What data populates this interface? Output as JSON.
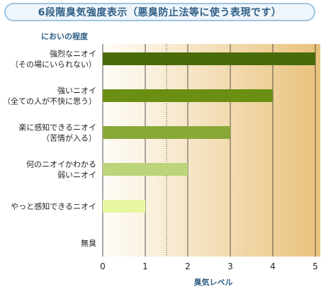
{
  "header": {
    "title": "6段階臭気強度表示（悪臭防止法等に使う表現です）"
  },
  "chart_data": {
    "type": "bar",
    "orientation": "horizontal",
    "title": "6段階臭気強度表示（悪臭防止法等に使う表現です）",
    "ylabel": "においの程度",
    "xlabel": "臭気レベル",
    "xlim": [
      0,
      5
    ],
    "xticks": [
      "0",
      "1",
      "2",
      "3",
      "4",
      "5"
    ],
    "grid": true,
    "categories": [
      [
        "強烈なニオイ",
        "（その場にいられない）"
      ],
      [
        "強いニオイ",
        "（全ての人が不快に思う）"
      ],
      [
        "楽に感知できるニオイ",
        "（苦情が入る）"
      ],
      [
        "何のニオイかわかる",
        "弱いニオイ"
      ],
      [
        "やっと感知できるニオイ"
      ],
      [
        "無臭"
      ]
    ],
    "values": [
      5,
      4,
      3,
      2,
      1,
      0
    ],
    "bar_colors": [
      "#4a6b0a",
      "#6a8f12",
      "#88a838",
      "#bcd47a",
      "#e6f7a0",
      "#ffffff"
    ],
    "reference_line": 1.5,
    "colors": {
      "background_gradient_start": "#fffdf8",
      "background_gradient_end": "#e9c27c",
      "axis": "#555555",
      "label_text": "#222222",
      "axis_title": "#2f5f86"
    }
  }
}
